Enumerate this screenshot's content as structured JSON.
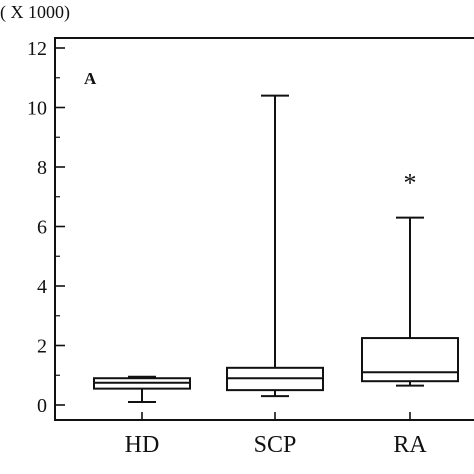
{
  "chart_data": {
    "type": "box",
    "y_multiplier_label": "( X 1000)",
    "panel_label": "A",
    "ylim": [
      0,
      12
    ],
    "yticks": [
      0,
      2,
      4,
      6,
      8,
      10,
      12
    ],
    "categories": [
      "HD",
      "SCP",
      "RA"
    ],
    "boxes": [
      {
        "category": "HD",
        "min": 0.1,
        "q1": 0.55,
        "median": 0.75,
        "q3": 0.9,
        "max": 0.95,
        "annotation": ""
      },
      {
        "category": "SCP",
        "min": 0.3,
        "q1": 0.5,
        "median": 0.9,
        "q3": 1.25,
        "max": 10.4,
        "annotation": ""
      },
      {
        "category": "RA",
        "min": 0.65,
        "q1": 0.8,
        "median": 1.1,
        "q3": 2.25,
        "max": 6.3,
        "annotation": "*"
      }
    ],
    "grid": false,
    "colors": {
      "stroke": "#111111",
      "fill": "#ffffff"
    }
  }
}
